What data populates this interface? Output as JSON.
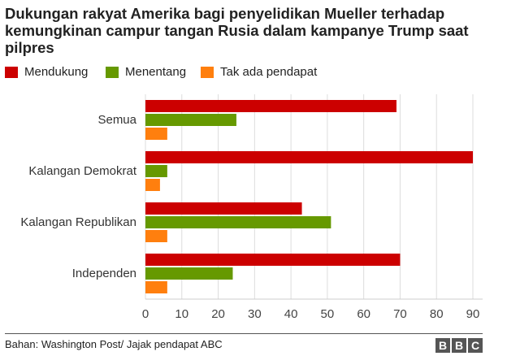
{
  "chart_data": {
    "type": "bar",
    "orientation": "horizontal",
    "title": "Dukungan rakyat Amerika bagi penyelidikan Mueller terhadap kemungkinan campur tangan Rusia dalam kampanye Trump saat pilpres",
    "categories": [
      "Semua",
      "Kalangan Demokrat",
      "Kalangan Republikan",
      "Independen"
    ],
    "series": [
      {
        "name": "Mendukung",
        "color": "#cc0000",
        "values": [
          69,
          90,
          43,
          70
        ]
      },
      {
        "name": "Menentang",
        "color": "#669900",
        "values": [
          25,
          6,
          51,
          24
        ]
      },
      {
        "name": "Tak ada pendapat",
        "color": "#ff7f0e",
        "values": [
          6,
          4,
          6,
          6
        ]
      }
    ],
    "xlim": [
      0,
      90
    ],
    "xticks": [
      "0",
      "10",
      "20",
      "30",
      "40",
      "50",
      "60",
      "70",
      "80",
      "90"
    ],
    "grid": true,
    "legend": "top-left"
  },
  "footer": {
    "source": "Bahan: Washington Post/ Jajak pendapat ABC",
    "logo": "BBC"
  }
}
